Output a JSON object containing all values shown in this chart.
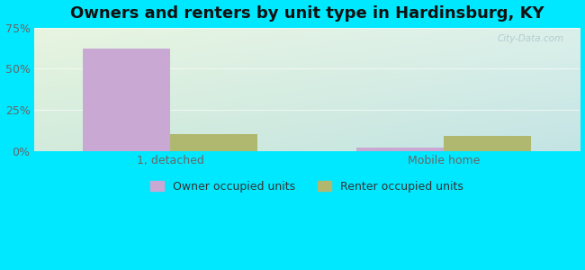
{
  "title": "Owners and renters by unit type in Hardinsburg, KY",
  "categories": [
    "1, detached",
    "Mobile home"
  ],
  "owner_values": [
    62,
    2
  ],
  "renter_values": [
    10,
    9
  ],
  "owner_color": "#c9a8d4",
  "renter_color": "#b0b870",
  "background_outer": "#00e8ff",
  "bg_top_left": "#e8f2e4",
  "bg_top_right": "#ddf0ee",
  "bg_bottom_left": "#d8ede0",
  "bg_bottom_right": "#c8e8e4",
  "ylim": [
    0,
    75
  ],
  "yticks": [
    0,
    25,
    50,
    75
  ],
  "ytick_labels": [
    "0%",
    "25%",
    "50%",
    "75%"
  ],
  "bar_width": 0.32,
  "title_fontsize": 13,
  "tick_fontsize": 9,
  "legend_labels": [
    "Owner occupied units",
    "Renter occupied units"
  ],
  "watermark": "City-Data.com",
  "grid_color": "#ffffff",
  "tick_color": "#666666"
}
